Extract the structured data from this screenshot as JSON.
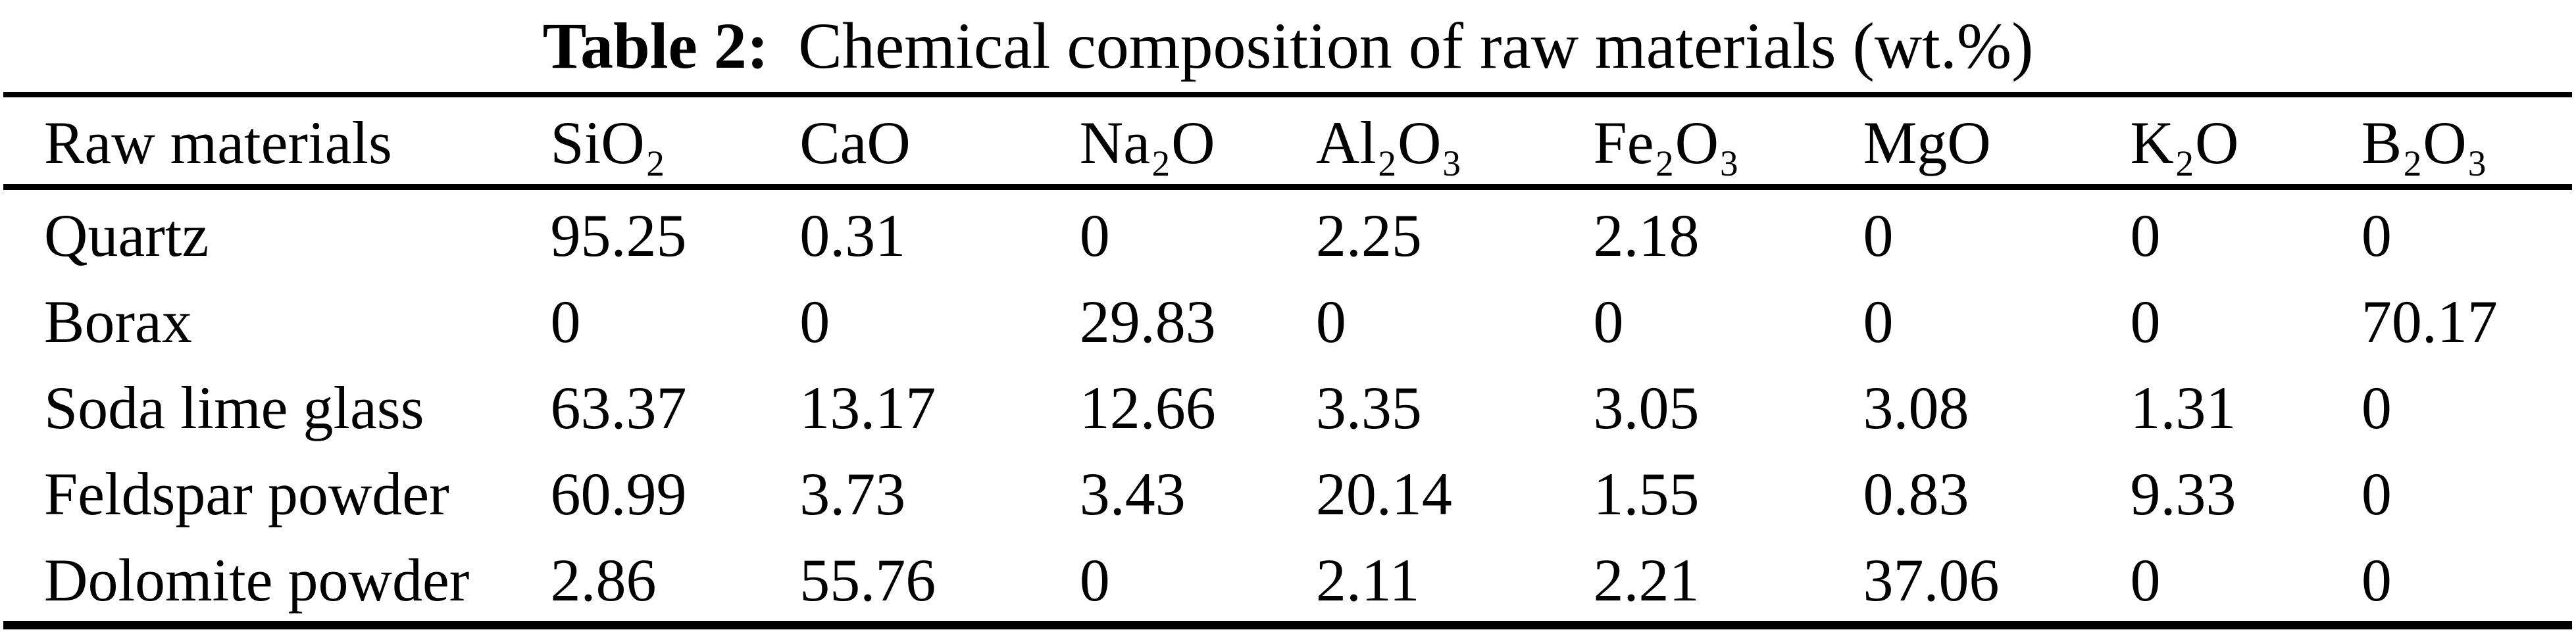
{
  "table": {
    "caption": {
      "label": "Table 2:",
      "text": "Chemical composition of raw materials (wt.%)"
    },
    "columns": [
      "Raw materials",
      "SiO₂",
      "CaO",
      "Na₂O",
      "Al₂O₃",
      "Fe₂O₃",
      "MgO",
      "K₂O",
      "B₂O₃"
    ],
    "rows": [
      {
        "name": "Quartz",
        "values": [
          "95.25",
          "0.31",
          "0",
          "2.25",
          "2.18",
          "0",
          "0",
          "0"
        ]
      },
      {
        "name": "Borax",
        "values": [
          "0",
          "0",
          "29.83",
          "0",
          "0",
          "0",
          "0",
          "70.17"
        ]
      },
      {
        "name": "Soda lime glass",
        "values": [
          "63.37",
          "13.17",
          "12.66",
          "3.35",
          "3.05",
          "3.08",
          "1.31",
          "0"
        ]
      },
      {
        "name": "Feldspar powder",
        "values": [
          "60.99",
          "3.73",
          "3.43",
          "20.14",
          "1.55",
          "0.83",
          "9.33",
          "0"
        ]
      },
      {
        "name": "Dolomite powder",
        "values": [
          "2.86",
          "55.76",
          "0",
          "2.11",
          "2.21",
          "37.06",
          "0",
          "0"
        ]
      }
    ]
  },
  "colors": {
    "text": "#000000",
    "background": "#ffffff",
    "rule": "#000000"
  }
}
